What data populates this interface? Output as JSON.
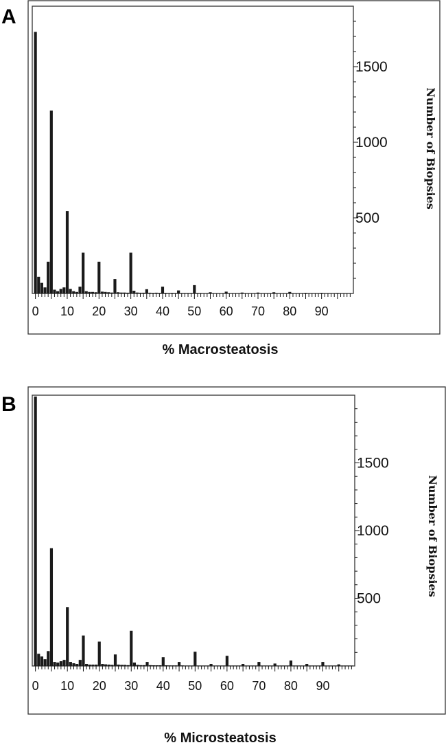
{
  "panels": [
    {
      "letter": "A",
      "chart_data": {
        "type": "bar",
        "xlabel": "% Macrosteatosis",
        "ylabel": "Number of Biopsies",
        "x_ticks": [
          0,
          10,
          20,
          30,
          40,
          50,
          60,
          70,
          80,
          90
        ],
        "y_ticks": [
          500,
          1000,
          1500
        ],
        "xlim": [
          -1,
          100
        ],
        "ylim": [
          0,
          1900
        ],
        "y_axis_side": "right",
        "grid": false,
        "bar_width": 0.9,
        "x": [
          0,
          1,
          2,
          3,
          4,
          5,
          6,
          7,
          8,
          9,
          10,
          11,
          12,
          13,
          14,
          15,
          16,
          17,
          18,
          19,
          20,
          21,
          22,
          23,
          24,
          25,
          26,
          27,
          28,
          29,
          30,
          31,
          32,
          33,
          34,
          35,
          36,
          37,
          38,
          39,
          40,
          41,
          42,
          43,
          44,
          45,
          46,
          47,
          48,
          49,
          50,
          51,
          52,
          53,
          54,
          55,
          56,
          57,
          58,
          59,
          60,
          61,
          62,
          63,
          64,
          65,
          66,
          67,
          68,
          69,
          70,
          71,
          72,
          73,
          74,
          75,
          76,
          77,
          78,
          79,
          80,
          81,
          82,
          83,
          84,
          85,
          86,
          87,
          88,
          89,
          90,
          91,
          92,
          93,
          94,
          95,
          96,
          97,
          98,
          99
        ],
        "values": [
          1730,
          110,
          70,
          40,
          210,
          1210,
          25,
          15,
          30,
          40,
          545,
          30,
          15,
          10,
          45,
          270,
          15,
          10,
          10,
          8,
          210,
          12,
          10,
          8,
          6,
          95,
          8,
          6,
          6,
          5,
          270,
          18,
          6,
          5,
          5,
          28,
          5,
          4,
          5,
          4,
          45,
          4,
          3,
          4,
          3,
          20,
          3,
          3,
          3,
          3,
          55,
          3,
          3,
          2,
          2,
          8,
          2,
          2,
          2,
          2,
          12,
          2,
          2,
          2,
          2,
          6,
          2,
          2,
          2,
          2,
          6,
          2,
          2,
          2,
          2,
          8,
          2,
          2,
          2,
          2,
          10,
          2,
          2,
          2,
          2,
          4,
          2,
          2,
          2,
          2,
          4,
          2,
          2,
          2,
          2,
          3,
          2,
          2,
          2,
          2
        ]
      }
    },
    {
      "letter": "B",
      "chart_data": {
        "type": "bar",
        "xlabel": "% Microsteatosis",
        "ylabel": "Number of Biopsies",
        "x_ticks": [
          0,
          10,
          20,
          30,
          40,
          50,
          60,
          70,
          80,
          90
        ],
        "y_ticks": [
          500,
          1000,
          1500
        ],
        "xlim": [
          -1,
          100
        ],
        "ylim": [
          0,
          2000
        ],
        "y_axis_side": "right",
        "grid": false,
        "bar_width": 0.9,
        "x": [
          0,
          1,
          2,
          3,
          4,
          5,
          6,
          7,
          8,
          9,
          10,
          11,
          12,
          13,
          14,
          15,
          16,
          17,
          18,
          19,
          20,
          21,
          22,
          23,
          24,
          25,
          26,
          27,
          28,
          29,
          30,
          31,
          32,
          33,
          34,
          35,
          36,
          37,
          38,
          39,
          40,
          41,
          42,
          43,
          44,
          45,
          46,
          47,
          48,
          49,
          50,
          51,
          52,
          53,
          54,
          55,
          56,
          57,
          58,
          59,
          60,
          61,
          62,
          63,
          64,
          65,
          66,
          67,
          68,
          69,
          70,
          71,
          72,
          73,
          74,
          75,
          76,
          77,
          78,
          79,
          80,
          81,
          82,
          83,
          84,
          85,
          86,
          87,
          88,
          89,
          90,
          91,
          92,
          93,
          94,
          95,
          96,
          97,
          98,
          99
        ],
        "values": [
          1990,
          90,
          70,
          50,
          110,
          870,
          30,
          25,
          35,
          45,
          435,
          30,
          20,
          15,
          45,
          225,
          15,
          10,
          10,
          10,
          180,
          15,
          12,
          10,
          8,
          85,
          10,
          8,
          8,
          6,
          260,
          25,
          8,
          6,
          6,
          30,
          6,
          5,
          5,
          5,
          65,
          5,
          4,
          4,
          4,
          30,
          4,
          3,
          3,
          3,
          105,
          3,
          3,
          3,
          3,
          15,
          3,
          3,
          3,
          3,
          75,
          3,
          3,
          3,
          3,
          15,
          3,
          3,
          3,
          3,
          30,
          3,
          3,
          3,
          3,
          18,
          3,
          3,
          3,
          3,
          40,
          3,
          3,
          3,
          3,
          15,
          3,
          3,
          3,
          3,
          30,
          3,
          3,
          3,
          3,
          12,
          3,
          3,
          3,
          3
        ]
      }
    }
  ]
}
